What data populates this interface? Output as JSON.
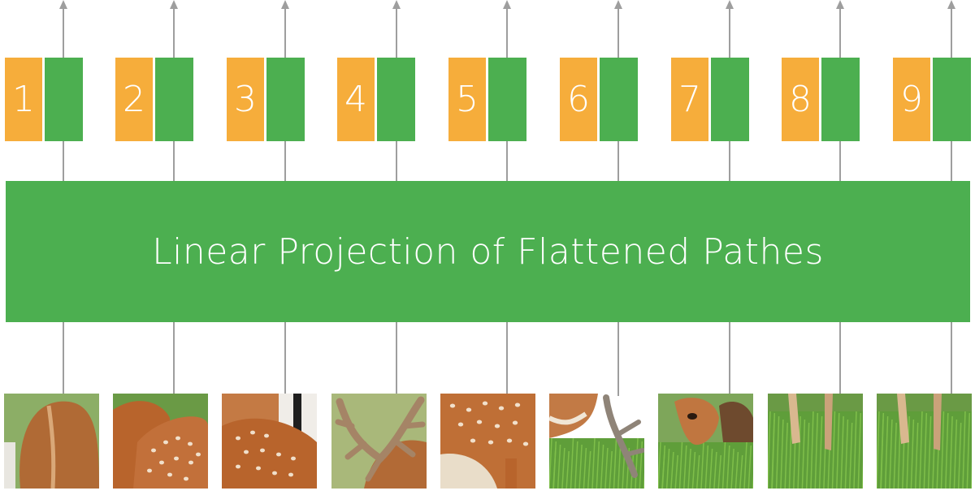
{
  "projection_label": "Linear Projection of Flattened Pathes",
  "patches": [
    {
      "number": "1",
      "scene": "deer-back"
    },
    {
      "number": "2",
      "scene": "spotted-flank"
    },
    {
      "number": "3",
      "scene": "spotted-flank-stripe"
    },
    {
      "number": "4",
      "scene": "antlers"
    },
    {
      "number": "5",
      "scene": "spotted-body"
    },
    {
      "number": "6",
      "scene": "antler-grass"
    },
    {
      "number": "7",
      "scene": "grazing-head"
    },
    {
      "number": "8",
      "scene": "legs-grass"
    },
    {
      "number": "9",
      "scene": "legs-grass"
    }
  ],
  "colors": {
    "position_embedding": "#f6ad3b",
    "patch_embedding": "#4caf50",
    "projection": "#4caf50",
    "arrow": "#9e9e9e"
  }
}
